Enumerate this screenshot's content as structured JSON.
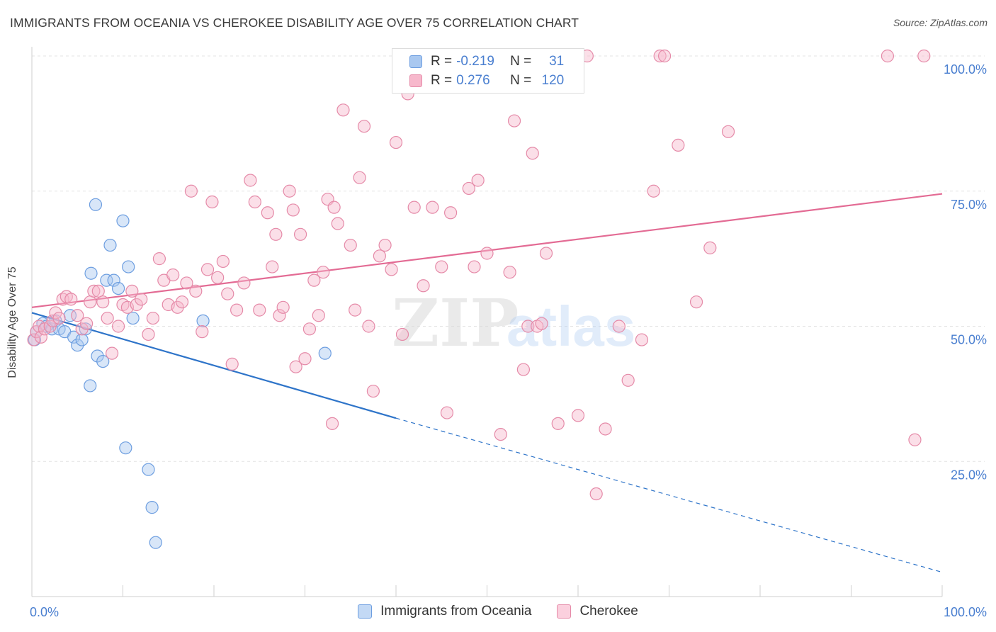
{
  "header": {
    "title": "IMMIGRANTS FROM OCEANIA VS CHEROKEE DISABILITY AGE OVER 75 CORRELATION CHART",
    "source": "Source: ZipAtlas.com"
  },
  "watermark": {
    "zip": "ZIP",
    "atlas": "atlas"
  },
  "legend_top": {
    "rows": [
      {
        "r_label": "R =",
        "r_value": "-0.219",
        "n_label": "N =",
        "n_value": "31",
        "color": "#a9c8f0",
        "border": "#6d9ee0"
      },
      {
        "r_label": "R =",
        "r_value": "0.276",
        "n_label": "N =",
        "n_value": "120",
        "color": "#f7b8cc",
        "border": "#e58aa8"
      }
    ]
  },
  "chart_data": {
    "type": "scatter",
    "title": "IMMIGRANTS FROM OCEANIA VS CHEROKEE DISABILITY AGE OVER 75 CORRELATION CHART",
    "xlabel": "",
    "ylabel": "Disability Age Over 75",
    "xlim": [
      0,
      100
    ],
    "ylim": [
      0,
      100
    ],
    "x_tick_labels": [
      {
        "value": 0,
        "label": "0.0%"
      },
      {
        "value": 100,
        "label": "100.0%"
      }
    ],
    "y_tick_labels": [
      {
        "value": 25,
        "label": "25.0%"
      },
      {
        "value": 50,
        "label": "50.0%"
      },
      {
        "value": 75,
        "label": "75.0%"
      },
      {
        "value": 100,
        "label": "100.0%"
      }
    ],
    "grid": true,
    "legend_position": "bottom",
    "series": [
      {
        "name": "Immigrants from Oceania",
        "color": "#a9c8f0",
        "stroke": "#6d9ee0",
        "line_color": "#2e74c9",
        "trend": {
          "x0": 0,
          "y0": 52.5,
          "x1": 40,
          "y1": 33.0,
          "dash_to_x": 100,
          "dash_to_y": 4.5
        },
        "points": [
          [
            0.3,
            47.5
          ],
          [
            0.5,
            49.0
          ],
          [
            1.2,
            50.5
          ],
          [
            1.6,
            50.0
          ],
          [
            2.2,
            49.5
          ],
          [
            2.6,
            51.0
          ],
          [
            3.0,
            49.5
          ],
          [
            3.6,
            49.0
          ],
          [
            4.2,
            52.0
          ],
          [
            4.6,
            48.0
          ],
          [
            5.0,
            46.5
          ],
          [
            5.5,
            47.5
          ],
          [
            5.9,
            49.5
          ],
          [
            6.4,
            39.0
          ],
          [
            6.5,
            59.8
          ],
          [
            7.0,
            72.5
          ],
          [
            7.2,
            44.5
          ],
          [
            7.8,
            43.5
          ],
          [
            8.2,
            58.5
          ],
          [
            8.6,
            65.0
          ],
          [
            9.0,
            58.5
          ],
          [
            9.5,
            57.0
          ],
          [
            10.0,
            69.5
          ],
          [
            10.3,
            27.5
          ],
          [
            10.6,
            61.0
          ],
          [
            11.1,
            51.5
          ],
          [
            12.8,
            23.5
          ],
          [
            13.2,
            16.5
          ],
          [
            13.6,
            10.0
          ],
          [
            18.8,
            51.0
          ],
          [
            32.2,
            45.0
          ]
        ]
      },
      {
        "name": "Cherokee",
        "color": "#f7b8cc",
        "stroke": "#e58aa8",
        "line_color": "#e36b94",
        "trend": {
          "x0": 0,
          "y0": 53.5,
          "x1": 100,
          "y1": 74.5
        },
        "points": [
          [
            0.2,
            47.5
          ],
          [
            0.5,
            49.0
          ],
          [
            0.8,
            50.0
          ],
          [
            1.0,
            48.0
          ],
          [
            1.4,
            49.5
          ],
          [
            2.0,
            50.0
          ],
          [
            2.3,
            51.0
          ],
          [
            2.6,
            52.5
          ],
          [
            3.0,
            51.5
          ],
          [
            3.4,
            55.0
          ],
          [
            3.8,
            55.5
          ],
          [
            4.3,
            55.0
          ],
          [
            5.0,
            52.0
          ],
          [
            5.5,
            49.5
          ],
          [
            6.0,
            50.5
          ],
          [
            6.4,
            54.5
          ],
          [
            6.8,
            56.5
          ],
          [
            7.3,
            56.5
          ],
          [
            7.8,
            54.5
          ],
          [
            8.3,
            51.5
          ],
          [
            8.8,
            45.0
          ],
          [
            9.5,
            50.0
          ],
          [
            10.0,
            54.0
          ],
          [
            10.5,
            53.5
          ],
          [
            11.0,
            56.5
          ],
          [
            11.5,
            54.0
          ],
          [
            12.0,
            55.0
          ],
          [
            12.8,
            48.5
          ],
          [
            13.3,
            51.5
          ],
          [
            14.0,
            62.5
          ],
          [
            14.5,
            58.5
          ],
          [
            15.0,
            54.0
          ],
          [
            15.5,
            59.5
          ],
          [
            16.0,
            53.5
          ],
          [
            16.5,
            54.5
          ],
          [
            17.0,
            58.0
          ],
          [
            17.5,
            75.0
          ],
          [
            18.0,
            56.5
          ],
          [
            18.7,
            49.0
          ],
          [
            19.3,
            60.5
          ],
          [
            19.8,
            73.0
          ],
          [
            20.4,
            59.0
          ],
          [
            21.0,
            62.0
          ],
          [
            21.5,
            56.0
          ],
          [
            22.0,
            43.0
          ],
          [
            22.5,
            53.0
          ],
          [
            23.3,
            58.0
          ],
          [
            24.0,
            77.0
          ],
          [
            24.5,
            73.0
          ],
          [
            25.0,
            53.0
          ],
          [
            25.9,
            71.0
          ],
          [
            26.4,
            61.0
          ],
          [
            26.8,
            67.0
          ],
          [
            27.2,
            52.0
          ],
          [
            27.6,
            53.5
          ],
          [
            28.3,
            75.0
          ],
          [
            28.7,
            71.5
          ],
          [
            29.0,
            42.5
          ],
          [
            29.5,
            67.0
          ],
          [
            30.0,
            44.0
          ],
          [
            30.5,
            49.5
          ],
          [
            31.0,
            58.5
          ],
          [
            31.5,
            52.0
          ],
          [
            32.0,
            60.0
          ],
          [
            32.5,
            73.5
          ],
          [
            33.0,
            32.0
          ],
          [
            33.2,
            72.0
          ],
          [
            33.6,
            69.0
          ],
          [
            34.2,
            90.0
          ],
          [
            35.0,
            65.0
          ],
          [
            35.5,
            53.0
          ],
          [
            36.0,
            77.5
          ],
          [
            36.5,
            87.0
          ],
          [
            37.0,
            50.0
          ],
          [
            37.5,
            38.0
          ],
          [
            38.2,
            63.0
          ],
          [
            38.8,
            65.0
          ],
          [
            39.5,
            60.5
          ],
          [
            40.0,
            84.0
          ],
          [
            40.7,
            48.5
          ],
          [
            41.3,
            93.0
          ],
          [
            42.0,
            72.0
          ],
          [
            43.0,
            57.5
          ],
          [
            44.0,
            72.0
          ],
          [
            45.0,
            61.0
          ],
          [
            45.6,
            34.0
          ],
          [
            46.0,
            71.0
          ],
          [
            47.0,
            100.0
          ],
          [
            48.0,
            75.5
          ],
          [
            48.6,
            61.0
          ],
          [
            49.0,
            77.0
          ],
          [
            50.0,
            63.5
          ],
          [
            51.5,
            30.0
          ],
          [
            52.5,
            60.0
          ],
          [
            53.0,
            88.0
          ],
          [
            54.0,
            42.0
          ],
          [
            54.5,
            50.0
          ],
          [
            55.0,
            82.0
          ],
          [
            55.5,
            50.0
          ],
          [
            56.0,
            50.5
          ],
          [
            56.5,
            63.5
          ],
          [
            57.8,
            32.0
          ],
          [
            60.0,
            33.5
          ],
          [
            61.0,
            100.0
          ],
          [
            62.0,
            19.0
          ],
          [
            63.0,
            31.0
          ],
          [
            64.5,
            50.0
          ],
          [
            65.5,
            40.0
          ],
          [
            67.0,
            47.5
          ],
          [
            68.3,
            75.0
          ],
          [
            69.0,
            100.0
          ],
          [
            69.5,
            100.0
          ],
          [
            71.0,
            83.5
          ],
          [
            73.0,
            54.5
          ],
          [
            74.5,
            64.5
          ],
          [
            76.5,
            86.0
          ],
          [
            94.0,
            100.0
          ],
          [
            97.0,
            29.0
          ],
          [
            98.0,
            100.0
          ]
        ]
      }
    ]
  }
}
